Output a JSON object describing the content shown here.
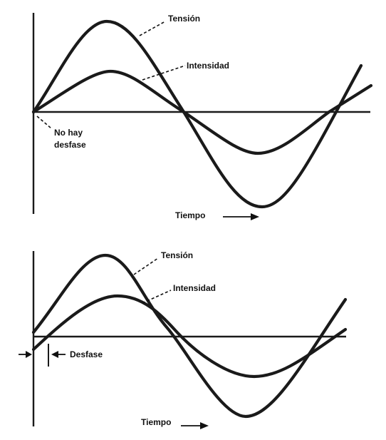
{
  "top": {
    "label_voltage": "Tensión",
    "label_current": "Intensidad",
    "label_phase_line1": "No hay",
    "label_phase_line2": "desfase",
    "label_time": "Tiempo"
  },
  "bottom": {
    "label_voltage": "Tensión",
    "label_current": "Intensidad",
    "label_phase": "Desfase",
    "label_time": "Tiempo"
  }
}
